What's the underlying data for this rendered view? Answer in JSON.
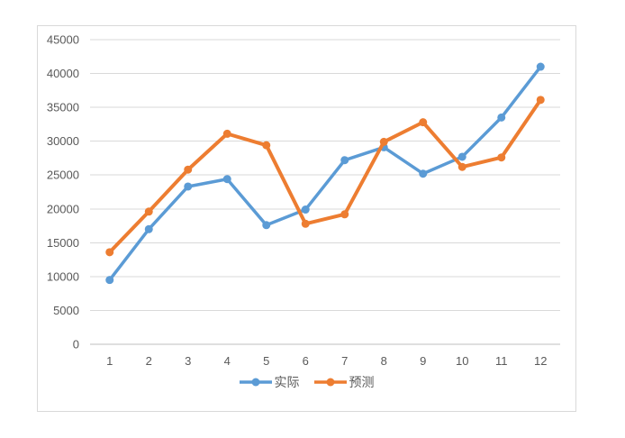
{
  "chart_data": {
    "type": "line",
    "title": "",
    "xlabel": "",
    "ylabel": "",
    "categories": [
      "1",
      "2",
      "3",
      "4",
      "5",
      "6",
      "7",
      "8",
      "9",
      "10",
      "11",
      "12"
    ],
    "series": [
      {
        "name": "实际",
        "color": "#5B9BD5",
        "line_width": 3.5,
        "marker": "circle",
        "values": [
          9500,
          17000,
          23300,
          24400,
          17600,
          19900,
          27200,
          29100,
          25200,
          27700,
          33500,
          41000
        ]
      },
      {
        "name": "预测",
        "color": "#ED7D31",
        "line_width": 4,
        "marker": "circle",
        "values": [
          13600,
          19600,
          25800,
          31100,
          29400,
          17800,
          19200,
          29900,
          32800,
          26200,
          27600,
          36100
        ]
      }
    ],
    "ylim": [
      0,
      45000
    ],
    "y_ticks": [
      0,
      5000,
      10000,
      15000,
      20000,
      25000,
      30000,
      35000,
      40000,
      45000
    ],
    "grid": true,
    "legend_position": "bottom"
  },
  "styles": {
    "background": "#FFFFFF",
    "frame_border_color": "#D9D9D9",
    "gridline_color": "#D9D9D9",
    "axis_line_color": "#BFBFBF",
    "axis_text_color": "#595959",
    "axis_font_size": 13
  }
}
